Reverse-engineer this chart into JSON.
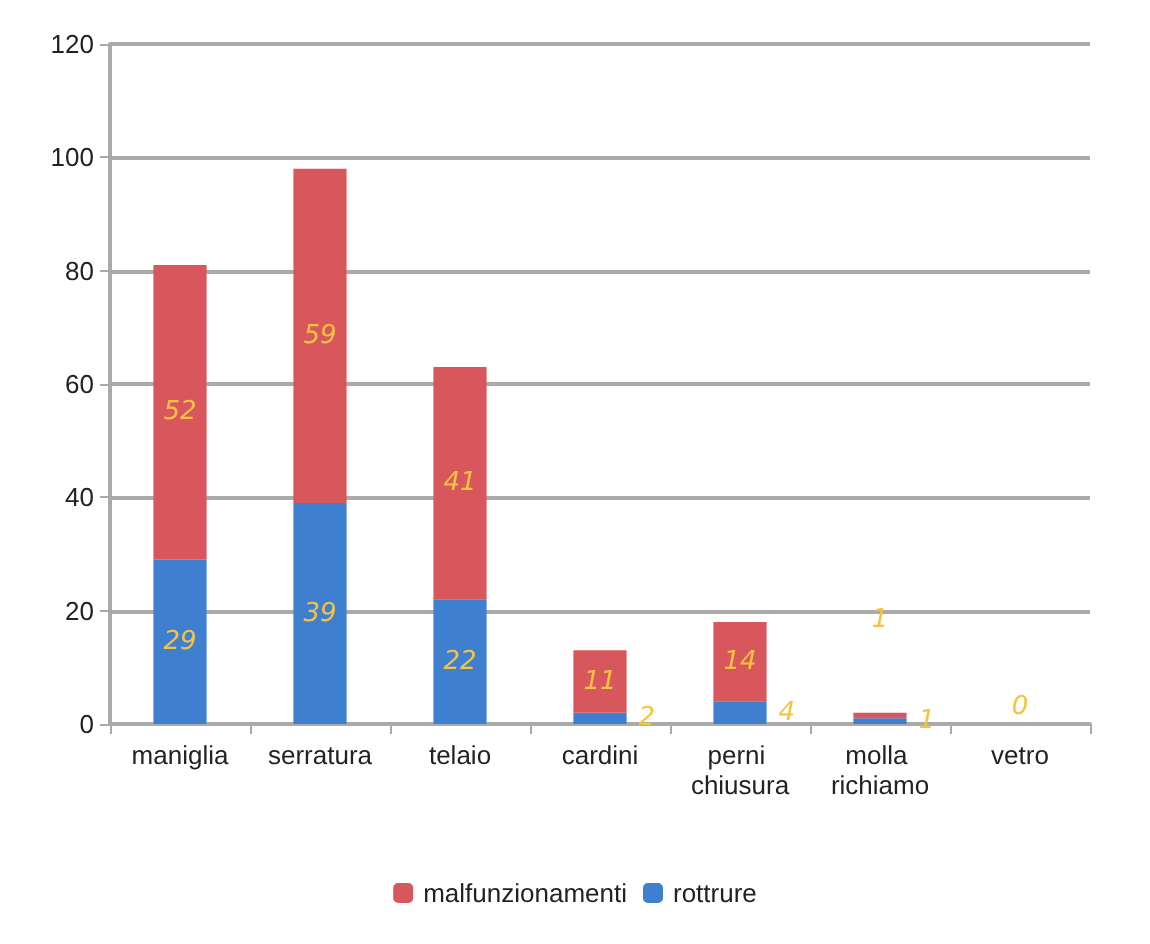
{
  "chart_data": {
    "type": "bar",
    "stacked": true,
    "categories": [
      "maniglia",
      "serratura",
      "telaio",
      "cardini",
      "perni chiusura",
      "molla richiamo",
      "vetro"
    ],
    "series": [
      {
        "name": "rottrure",
        "color": "#3f7fcf",
        "values": [
          29,
          39,
          22,
          2,
          4,
          1,
          0
        ],
        "value_labels": [
          "29",
          "39",
          "22",
          "2",
          "4",
          "1",
          "0"
        ]
      },
      {
        "name": "malfunzionamenti",
        "color": "#d8575c",
        "values": [
          52,
          59,
          41,
          11,
          14,
          1,
          0
        ],
        "value_labels": [
          "52",
          "59",
          "41",
          "11",
          "14",
          "1",
          null
        ]
      }
    ],
    "ylim": [
      0,
      120
    ],
    "yticks": [
      0,
      20,
      40,
      60,
      80,
      100,
      120
    ],
    "grid": "y",
    "legend": "bottom"
  }
}
